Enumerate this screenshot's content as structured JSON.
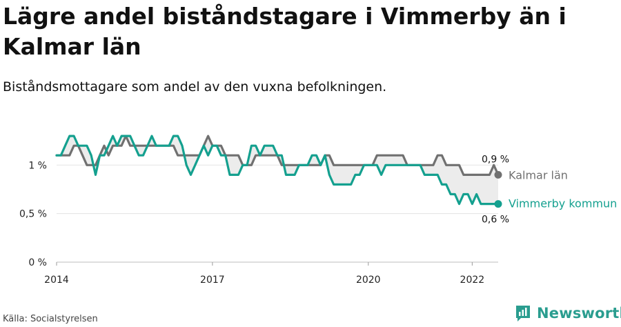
{
  "header": {
    "title": "Lägre andel biståndstagare i Vimmerby än i Kalmar län",
    "subtitle": "Biståndsmottagare som andel av den vuxna befolkningen."
  },
  "footer": {
    "source": "Källa: Socialstyrelsen",
    "brand": "Newsworthy"
  },
  "colors": {
    "kalmar": "#707070",
    "vimmerby": "#14a08f",
    "gap_fill": "#ececec",
    "brand": "#2a9d8f"
  },
  "chart_data": {
    "type": "line",
    "x_start": "2014-01",
    "x_step": "month",
    "xlim": [
      "2014-01",
      "2022-07"
    ],
    "ylim": [
      0,
      1.45
    ],
    "y_ticks": [
      {
        "value": 0,
        "label": "0 %"
      },
      {
        "value": 0.5,
        "label": "0,5 %"
      },
      {
        "value": 1,
        "label": "1 %"
      }
    ],
    "x_ticks": [
      {
        "value": "2014-01",
        "label": "2014"
      },
      {
        "value": "2017-01",
        "label": "2017"
      },
      {
        "value": "2020-01",
        "label": "2020"
      },
      {
        "value": "2022-01",
        "label": "2022"
      }
    ],
    "grid": true,
    "series": [
      {
        "name": "Kalmar län",
        "key": "kalmar",
        "end_label": "0,9 %",
        "values": [
          1.1,
          1.1,
          1.1,
          1.1,
          1.2,
          1.2,
          1.1,
          1.0,
          1.0,
          1.0,
          1.1,
          1.2,
          1.1,
          1.2,
          1.2,
          1.2,
          1.3,
          1.2,
          1.2,
          1.2,
          1.2,
          1.2,
          1.2,
          1.2,
          1.2,
          1.2,
          1.2,
          1.2,
          1.1,
          1.1,
          1.1,
          1.1,
          1.1,
          1.1,
          1.2,
          1.3,
          1.2,
          1.2,
          1.2,
          1.1,
          1.1,
          1.1,
          1.1,
          1.0,
          1.0,
          1.0,
          1.1,
          1.1,
          1.1,
          1.1,
          1.1,
          1.1,
          1.0,
          1.0,
          1.0,
          1.0,
          1.0,
          1.0,
          1.0,
          1.0,
          1.0,
          1.0,
          1.1,
          1.1,
          1.0,
          1.0,
          1.0,
          1.0,
          1.0,
          1.0,
          1.0,
          1.0,
          1.0,
          1.0,
          1.1,
          1.1,
          1.1,
          1.1,
          1.1,
          1.1,
          1.1,
          1.0,
          1.0,
          1.0,
          1.0,
          1.0,
          1.0,
          1.0,
          1.1,
          1.1,
          1.0,
          1.0,
          1.0,
          1.0,
          0.9,
          0.9,
          0.9,
          0.9,
          0.9,
          0.9,
          0.9,
          1.0,
          0.9
        ]
      },
      {
        "name": "Vimmerby kommun",
        "key": "vimmerby",
        "end_label": "0,6 %",
        "values": [
          1.1,
          1.1,
          1.2,
          1.3,
          1.3,
          1.2,
          1.2,
          1.2,
          1.1,
          0.9,
          1.1,
          1.1,
          1.2,
          1.3,
          1.2,
          1.3,
          1.3,
          1.3,
          1.2,
          1.1,
          1.1,
          1.2,
          1.3,
          1.2,
          1.2,
          1.2,
          1.2,
          1.3,
          1.3,
          1.2,
          1.0,
          0.9,
          1.0,
          1.1,
          1.2,
          1.1,
          1.2,
          1.2,
          1.1,
          1.1,
          0.9,
          0.9,
          0.9,
          1.0,
          1.0,
          1.2,
          1.2,
          1.1,
          1.2,
          1.2,
          1.2,
          1.1,
          1.1,
          0.9,
          0.9,
          0.9,
          1.0,
          1.0,
          1.0,
          1.1,
          1.1,
          1.0,
          1.1,
          0.9,
          0.8,
          0.8,
          0.8,
          0.8,
          0.8,
          0.9,
          0.9,
          1.0,
          1.0,
          1.0,
          1.0,
          0.9,
          1.0,
          1.0,
          1.0,
          1.0,
          1.0,
          1.0,
          1.0,
          1.0,
          1.0,
          0.9,
          0.9,
          0.9,
          0.9,
          0.8,
          0.8,
          0.7,
          0.7,
          0.6,
          0.7,
          0.7,
          0.6,
          0.7,
          0.6,
          0.6,
          0.6,
          0.6,
          0.6
        ]
      }
    ]
  }
}
